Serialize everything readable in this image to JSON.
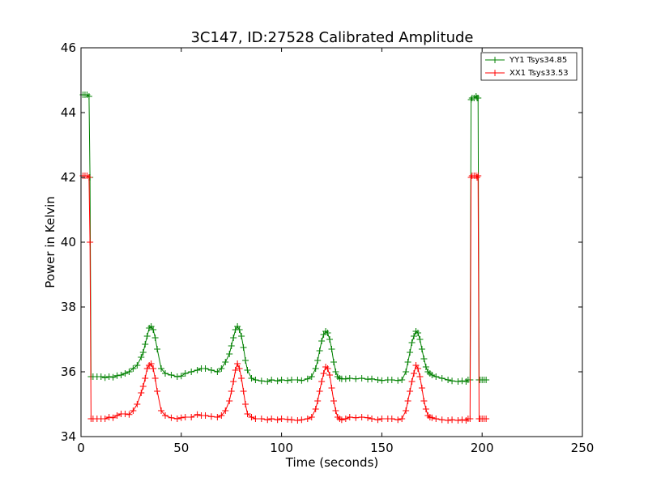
{
  "chart_data": {
    "type": "line",
    "title": "3C147, ID:27528 Calibrated Amplitude",
    "xlabel": "Time (seconds)",
    "ylabel": "Power in Kelvin",
    "xlim": [
      0,
      250
    ],
    "ylim": [
      34,
      46
    ],
    "xticks": [
      "0",
      "50",
      "100",
      "150",
      "200",
      "250"
    ],
    "yticks": [
      "34",
      "36",
      "38",
      "40",
      "42",
      "44",
      "46"
    ],
    "grid": false,
    "legend_position": "top-right",
    "series": [
      {
        "name": "YY1 Tsys34.85",
        "color": "#008000",
        "x": [
          1,
          2,
          3,
          4,
          4.5,
          5,
          6,
          8,
          10,
          12,
          14,
          16,
          18,
          20,
          22,
          24,
          26,
          28,
          30,
          31,
          32,
          33,
          34,
          35,
          36,
          37,
          38,
          40,
          42,
          45,
          48,
          50,
          52,
          55,
          58,
          60,
          62,
          65,
          68,
          70,
          72,
          74,
          75,
          76,
          77,
          78,
          79,
          80,
          81,
          82,
          83,
          85,
          87,
          90,
          93,
          95,
          98,
          100,
          103,
          105,
          108,
          110,
          113,
          115,
          117,
          118,
          119,
          120,
          121,
          122,
          123,
          124,
          125,
          126,
          127,
          128,
          129,
          130,
          132,
          134,
          137,
          140,
          143,
          145,
          148,
          150,
          153,
          155,
          158,
          160,
          162,
          163,
          164,
          165,
          166,
          167,
          168,
          169,
          170,
          171,
          172,
          173,
          174,
          175,
          177,
          180,
          183,
          185,
          188,
          190,
          192,
          193,
          194,
          194.5,
          195,
          196,
          197,
          197.5,
          198,
          198.5,
          199,
          200,
          201,
          202
        ],
        "y": [
          44.55,
          44.55,
          44.55,
          44.5,
          42,
          35.85,
          35.85,
          35.85,
          35.85,
          35.82,
          35.85,
          35.83,
          35.88,
          35.9,
          35.95,
          36.0,
          36.1,
          36.2,
          36.45,
          36.6,
          36.85,
          37.1,
          37.35,
          37.4,
          37.3,
          37.05,
          36.7,
          36.1,
          35.95,
          35.9,
          35.85,
          35.87,
          35.95,
          36.0,
          36.05,
          36.1,
          36.1,
          36.05,
          36.0,
          36.1,
          36.3,
          36.55,
          36.8,
          37.05,
          37.3,
          37.4,
          37.3,
          37.1,
          36.75,
          36.35,
          36.05,
          35.8,
          35.75,
          35.72,
          35.7,
          35.75,
          35.72,
          35.75,
          35.73,
          35.75,
          35.75,
          35.73,
          35.78,
          35.85,
          36.1,
          36.35,
          36.65,
          36.95,
          37.15,
          37.25,
          37.2,
          37.0,
          36.7,
          36.3,
          36.0,
          35.85,
          35.8,
          35.78,
          35.78,
          35.8,
          35.78,
          35.8,
          35.77,
          35.78,
          35.75,
          35.73,
          35.75,
          35.75,
          35.73,
          35.75,
          36.0,
          36.3,
          36.6,
          36.9,
          37.1,
          37.25,
          37.2,
          37.0,
          36.7,
          36.4,
          36.15,
          36.0,
          35.95,
          35.9,
          35.85,
          35.8,
          35.75,
          35.72,
          35.7,
          35.72,
          35.7,
          35.75,
          35.75,
          44.4,
          44.45,
          44.45,
          44.5,
          44.45,
          44.45,
          35.75,
          35.75,
          35.75,
          35.75,
          35.75
        ],
        "markers": "+"
      },
      {
        "name": "XX1 Tsys33.53",
        "color": "#ff0000",
        "x": [
          1,
          2,
          3,
          4,
          4.5,
          5,
          6,
          8,
          10,
          12,
          14,
          16,
          18,
          20,
          22,
          24,
          26,
          28,
          30,
          31,
          32,
          33,
          34,
          35,
          36,
          37,
          38,
          40,
          42,
          45,
          48,
          50,
          52,
          55,
          58,
          60,
          62,
          65,
          68,
          70,
          72,
          74,
          75,
          76,
          77,
          78,
          79,
          80,
          81,
          82,
          83,
          85,
          87,
          90,
          93,
          95,
          98,
          100,
          103,
          105,
          108,
          110,
          113,
          115,
          117,
          118,
          119,
          120,
          121,
          122,
          123,
          124,
          125,
          126,
          127,
          128,
          129,
          130,
          132,
          134,
          137,
          140,
          143,
          145,
          148,
          150,
          153,
          155,
          158,
          160,
          162,
          163,
          164,
          165,
          166,
          167,
          168,
          169,
          170,
          171,
          172,
          173,
          174,
          175,
          177,
          180,
          183,
          185,
          188,
          190,
          192,
          193,
          194,
          194.5,
          195,
          196,
          197,
          197.5,
          198,
          198.5,
          199,
          200,
          201,
          202
        ],
        "y": [
          42.05,
          42.05,
          42.05,
          42.0,
          40,
          34.55,
          34.55,
          34.55,
          34.55,
          34.55,
          34.6,
          34.58,
          34.65,
          34.7,
          34.7,
          34.68,
          34.8,
          35.0,
          35.35,
          35.55,
          35.8,
          36.1,
          36.2,
          36.25,
          36.1,
          35.8,
          35.4,
          34.8,
          34.65,
          34.58,
          34.55,
          34.58,
          34.6,
          34.6,
          34.68,
          34.65,
          34.65,
          34.62,
          34.6,
          34.65,
          34.8,
          35.1,
          35.4,
          35.7,
          36.05,
          36.25,
          36.1,
          35.8,
          35.4,
          35.0,
          34.7,
          34.6,
          34.55,
          34.55,
          34.52,
          34.55,
          34.52,
          34.55,
          34.53,
          34.52,
          34.5,
          34.52,
          34.55,
          34.6,
          34.85,
          35.1,
          35.4,
          35.7,
          35.95,
          36.15,
          36.1,
          35.9,
          35.5,
          35.1,
          34.8,
          34.6,
          34.55,
          34.52,
          34.55,
          34.6,
          34.58,
          34.6,
          34.58,
          34.55,
          34.52,
          34.55,
          34.55,
          34.55,
          34.52,
          34.55,
          34.8,
          35.1,
          35.4,
          35.7,
          35.95,
          36.2,
          36.1,
          35.85,
          35.5,
          35.1,
          34.85,
          34.65,
          34.6,
          34.58,
          34.55,
          34.52,
          34.5,
          34.52,
          34.5,
          34.52,
          34.5,
          34.55,
          34.55,
          42.0,
          42.05,
          42.05,
          42.05,
          42.0,
          42.05,
          34.55,
          34.55,
          34.55,
          34.55,
          34.55
        ],
        "markers": "+"
      }
    ]
  }
}
